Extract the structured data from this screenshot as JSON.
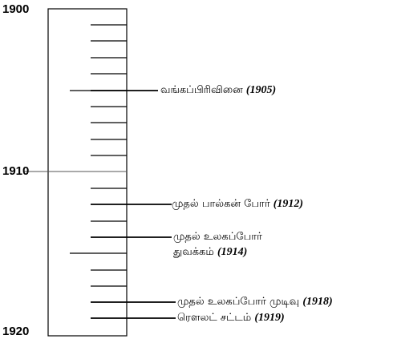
{
  "timeline": {
    "start_label": "1900",
    "mid_label": "1910",
    "end_label": "1920",
    "events": [
      {
        "text": "வங்கப்பிரிவினை",
        "year": "(1905)"
      },
      {
        "text": "முதல் பால்கன் போர்",
        "year": "(1912)"
      },
      {
        "text": "முதல் உலகப்போர்",
        "text2": "துவக்கம்",
        "year": "(1914)"
      },
      {
        "text": "முதல் உலகப்போர் முடிவு",
        "year": "(1918)"
      },
      {
        "text": "ரௌலட் சட்டம்",
        "year": "(1919)"
      }
    ]
  }
}
